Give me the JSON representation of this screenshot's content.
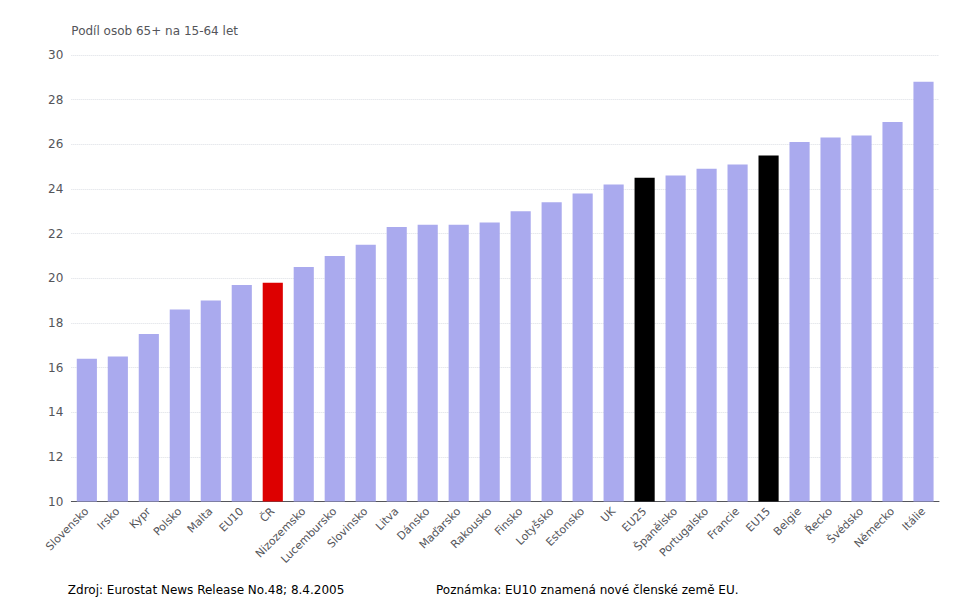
{
  "chart_data": {
    "type": "bar",
    "ylabel": "Podíl osob 65+ na 15-64 let",
    "categories": [
      "Slovensko",
      "Irsko",
      "Kypr",
      "Polsko",
      "Malta",
      "EU10",
      "ČR",
      "Nizozemsko",
      "Lucembursko",
      "Slovinsko",
      "Litva",
      "Dánsko",
      "Maďarsko",
      "Rakousko",
      "Finsko",
      "Lotyšsko",
      "Estonsko",
      "UK",
      "EU25",
      "Španělsko",
      "Portugalsko",
      "Francie",
      "EU15",
      "Belgie",
      "Řecko",
      "Švédsko",
      "Německo",
      "Itálie"
    ],
    "values": [
      16.4,
      16.5,
      17.5,
      18.6,
      19.0,
      19.7,
      19.8,
      20.5,
      21.0,
      21.5,
      22.3,
      22.4,
      22.4,
      22.5,
      23.0,
      23.4,
      23.8,
      24.2,
      24.5,
      24.6,
      24.9,
      25.1,
      25.5,
      26.1,
      26.3,
      26.4,
      27.0,
      28.8
    ],
    "colors": [
      "#aaaaee",
      "#aaaaee",
      "#aaaaee",
      "#aaaaee",
      "#aaaaee",
      "#aaaaee",
      "#dd0000",
      "#aaaaee",
      "#aaaaee",
      "#aaaaee",
      "#aaaaee",
      "#aaaaee",
      "#aaaaee",
      "#aaaaee",
      "#aaaaee",
      "#aaaaee",
      "#aaaaee",
      "#aaaaee",
      "#000000",
      "#aaaaee",
      "#aaaaee",
      "#aaaaee",
      "#000000",
      "#aaaaee",
      "#aaaaee",
      "#aaaaee",
      "#aaaaee",
      "#aaaaee"
    ],
    "ylim": [
      10,
      30
    ],
    "yticks": [
      10,
      12,
      14,
      16,
      18,
      20,
      22,
      24,
      26,
      28,
      30
    ],
    "grid": true,
    "annotations": [
      "Zdroj: Eurostat News Release No.48; 8.4.2005",
      "Poznámka: EU10 znamená nové členské země EU."
    ]
  }
}
